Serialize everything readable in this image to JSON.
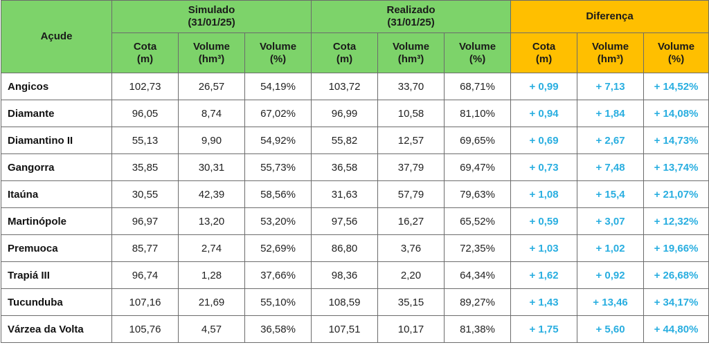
{
  "header": {
    "acude": "Açude",
    "groups": {
      "simulado": {
        "title": "Simulado",
        "date": "(31/01/25)"
      },
      "realizado": {
        "title": "Realizado",
        "date": "(31/01/25)"
      },
      "diferenca": {
        "title": "Diferença"
      }
    },
    "subcols": [
      {
        "name": "Cota",
        "unit": "(m)"
      },
      {
        "name": "Volume",
        "unit": "(hm³)"
      },
      {
        "name": "Volume",
        "unit": "(%)"
      }
    ]
  },
  "colors": {
    "green_header": "#7dd36a",
    "orange_header": "#ffbf00",
    "diff_text": "#29aee0"
  },
  "rows": [
    {
      "acude": "Angicos",
      "sim": [
        "102,73",
        "26,57",
        "54,19%"
      ],
      "real": [
        "103,72",
        "33,70",
        "68,71%"
      ],
      "diff": [
        "+ 0,99",
        "+ 7,13",
        "+ 14,52%"
      ]
    },
    {
      "acude": "Diamante",
      "sim": [
        "96,05",
        "8,74",
        "67,02%"
      ],
      "real": [
        "96,99",
        "10,58",
        "81,10%"
      ],
      "diff": [
        "+ 0,94",
        "+ 1,84",
        "+ 14,08%"
      ]
    },
    {
      "acude": "Diamantino II",
      "sim": [
        "55,13",
        "9,90",
        "54,92%"
      ],
      "real": [
        "55,82",
        "12,57",
        "69,65%"
      ],
      "diff": [
        "+ 0,69",
        "+ 2,67",
        "+ 14,73%"
      ]
    },
    {
      "acude": "Gangorra",
      "sim": [
        "35,85",
        "30,31",
        "55,73%"
      ],
      "real": [
        "36,58",
        "37,79",
        "69,47%"
      ],
      "diff": [
        "+ 0,73",
        "+ 7,48",
        "+ 13,74%"
      ]
    },
    {
      "acude": "Itaúna",
      "sim": [
        "30,55",
        "42,39",
        "58,56%"
      ],
      "real": [
        "31,63",
        "57,79",
        "79,63%"
      ],
      "diff": [
        "+ 1,08",
        "+ 15,4",
        "+ 21,07%"
      ]
    },
    {
      "acude": "Martinópole",
      "sim": [
        "96,97",
        "13,20",
        "53,20%"
      ],
      "real": [
        "97,56",
        "16,27",
        "65,52%"
      ],
      "diff": [
        "+ 0,59",
        "+ 3,07",
        "+ 12,32%"
      ]
    },
    {
      "acude": "Premuoca",
      "sim": [
        "85,77",
        "2,74",
        "52,69%"
      ],
      "real": [
        "86,80",
        "3,76",
        "72,35%"
      ],
      "diff": [
        "+ 1,03",
        "+ 1,02",
        "+ 19,66%"
      ]
    },
    {
      "acude": "Trapiá III",
      "sim": [
        "96,74",
        "1,28",
        "37,66%"
      ],
      "real": [
        "98,36",
        "2,20",
        "64,34%"
      ],
      "diff": [
        "+ 1,62",
        "+ 0,92",
        "+ 26,68%"
      ]
    },
    {
      "acude": "Tucunduba",
      "sim": [
        "107,16",
        "21,69",
        "55,10%"
      ],
      "real": [
        "108,59",
        "35,15",
        "89,27%"
      ],
      "diff": [
        "+ 1,43",
        "+ 13,46",
        "+ 34,17%"
      ]
    },
    {
      "acude": "Várzea da Volta",
      "sim": [
        "105,76",
        "4,57",
        "36,58%"
      ],
      "real": [
        "107,51",
        "10,17",
        "81,38%"
      ],
      "diff": [
        "+ 1,75",
        "+ 5,60",
        "+ 44,80%"
      ]
    }
  ]
}
